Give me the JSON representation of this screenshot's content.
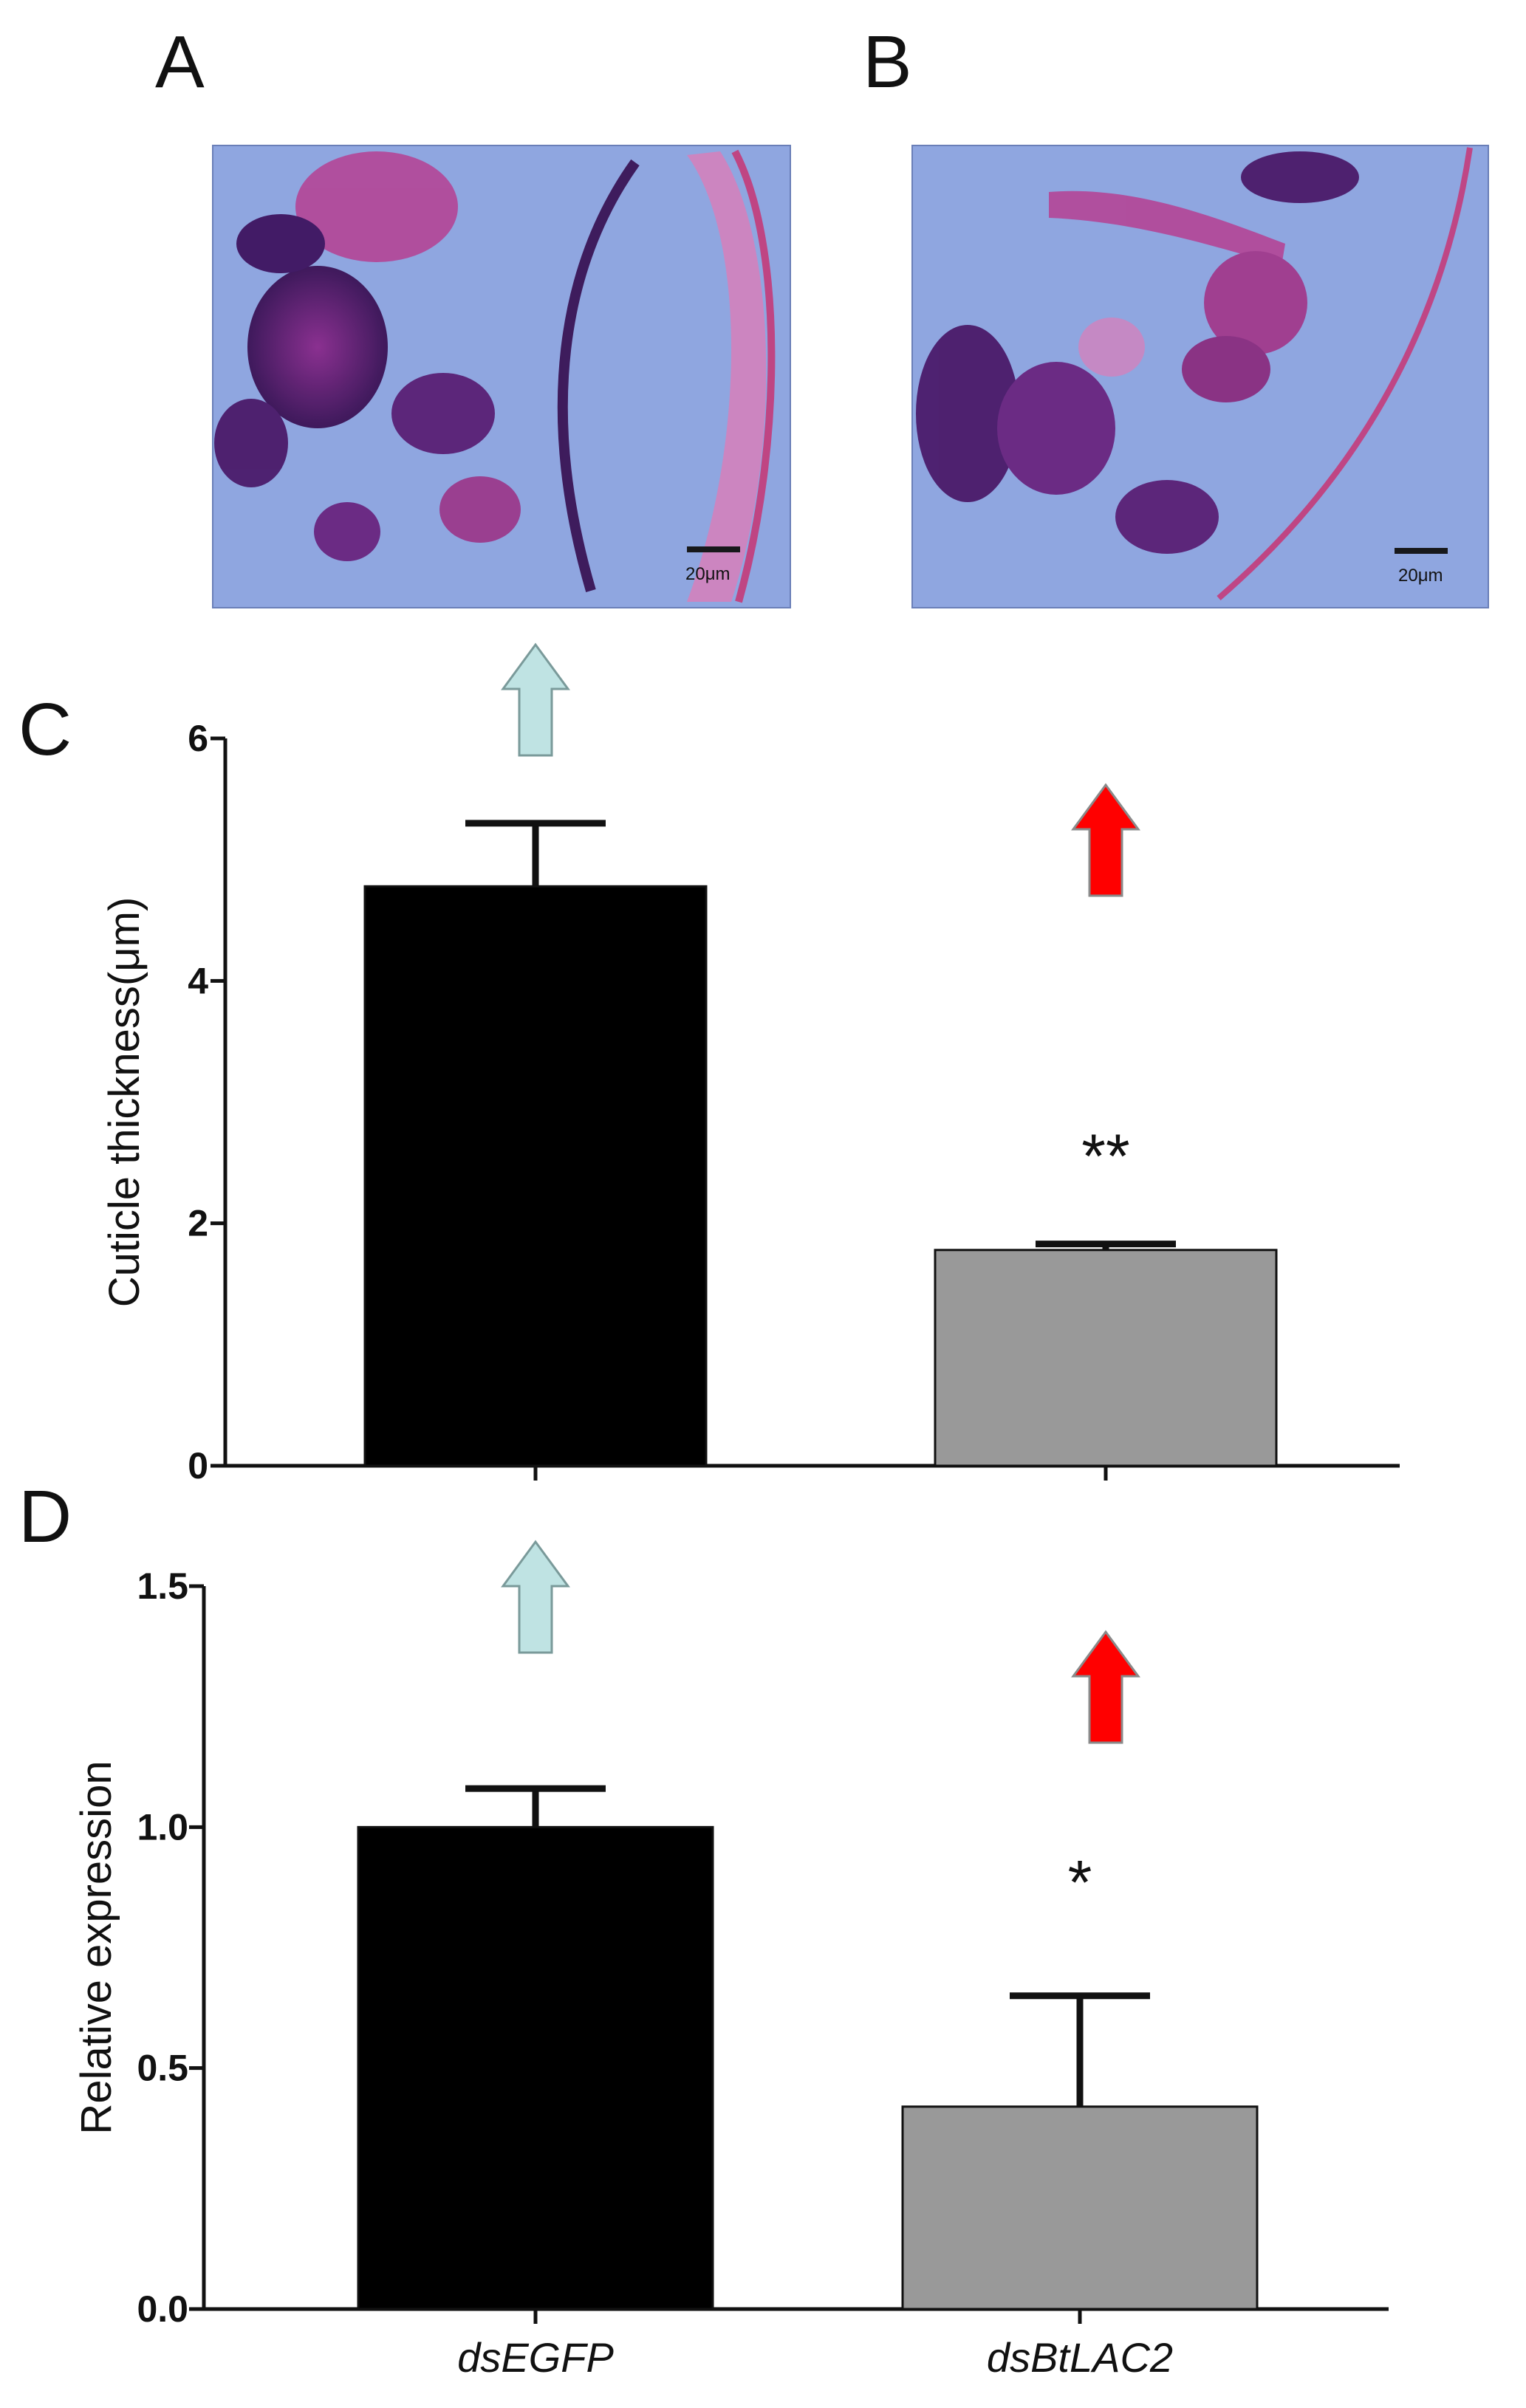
{
  "panels": {
    "A": "A",
    "B": "B",
    "C": "C",
    "D": "D"
  },
  "micrographs": [
    {
      "id": "A",
      "scale_bar": "20μm"
    },
    {
      "id": "B",
      "scale_bar": "20μm"
    }
  ],
  "colors": {
    "control_bar": "#000000",
    "treatment_bar": "#999999",
    "up_arrow_light": "#bfe3e3",
    "up_arrow_red": "#ff0000",
    "tissue_background": "#8fa6e0"
  },
  "chart_data": [
    {
      "panel": "C",
      "type": "bar",
      "categories": [
        "dsEGFP",
        "dsBtLAC2"
      ],
      "values": [
        4.78,
        1.78
      ],
      "errors": [
        0.52,
        0.05
      ],
      "significance": [
        "",
        "**"
      ],
      "ylabel": "Cuticle thickness(μm)",
      "ylim": [
        0,
        6
      ],
      "yticks": [
        "0",
        "2",
        "4",
        "6"
      ],
      "bar_colors": [
        "#000000",
        "#999999"
      ],
      "markers": [
        "up-arrow-light",
        "up-arrow-red"
      ]
    },
    {
      "panel": "D",
      "type": "bar",
      "categories": [
        "dsEGFP",
        "dsBtLAC2"
      ],
      "values": [
        1.0,
        0.42
      ],
      "errors": [
        0.08,
        0.23
      ],
      "significance": [
        "",
        "*"
      ],
      "ylabel": "Relative expression",
      "ylim": [
        0,
        1.5
      ],
      "yticks": [
        "0.0",
        "0.5",
        "1.0",
        "1.5"
      ],
      "bar_colors": [
        "#000000",
        "#999999"
      ],
      "markers": [
        "up-arrow-light",
        "up-arrow-red"
      ]
    }
  ]
}
